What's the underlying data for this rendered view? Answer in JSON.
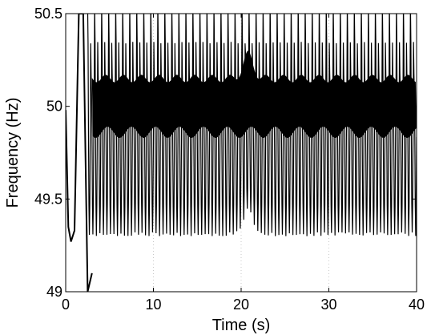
{
  "chart_data": {
    "type": "line",
    "title": "",
    "xlabel": "Time (s)",
    "ylabel": "Frequency (Hz)",
    "xlim": [
      0,
      40
    ],
    "ylim": [
      49,
      50.5
    ],
    "xticks": [
      0,
      10,
      20,
      30,
      40
    ],
    "xtick_labels": [
      "0",
      "10",
      "20",
      "30",
      "40"
    ],
    "yticks": [
      49,
      49.5,
      50,
      50.5
    ],
    "ytick_labels": [
      "49",
      "49.5",
      "50",
      "50.5"
    ],
    "grid": "vertical dotted at x ticks",
    "legend": "none",
    "line_color": "#000000",
    "series": [
      {
        "description_points": [
          {
            "x": 0.0,
            "y": 49.98
          },
          {
            "x": 0.3,
            "y": 49.35
          },
          {
            "x": 0.6,
            "y": 49.27
          },
          {
            "x": 1.0,
            "y": 49.33
          },
          {
            "x": 1.5,
            "y": 50.5
          },
          {
            "x": 2.0,
            "y": 50.5
          },
          {
            "x": 2.5,
            "y": 49.0
          },
          {
            "x": 3.0,
            "y": 49.1
          }
        ],
        "oscillation": {
          "start_x": 2.5,
          "end_x": 40,
          "period_s": 0.4,
          "dense_band": [
            49.86,
            50.15
          ],
          "upper_envelope": 50.5,
          "lower_envelope": 49.32,
          "event_x": 20.8,
          "event_upper_peak": 50.28,
          "event_lower_peak": 49.45
        }
      }
    ]
  }
}
